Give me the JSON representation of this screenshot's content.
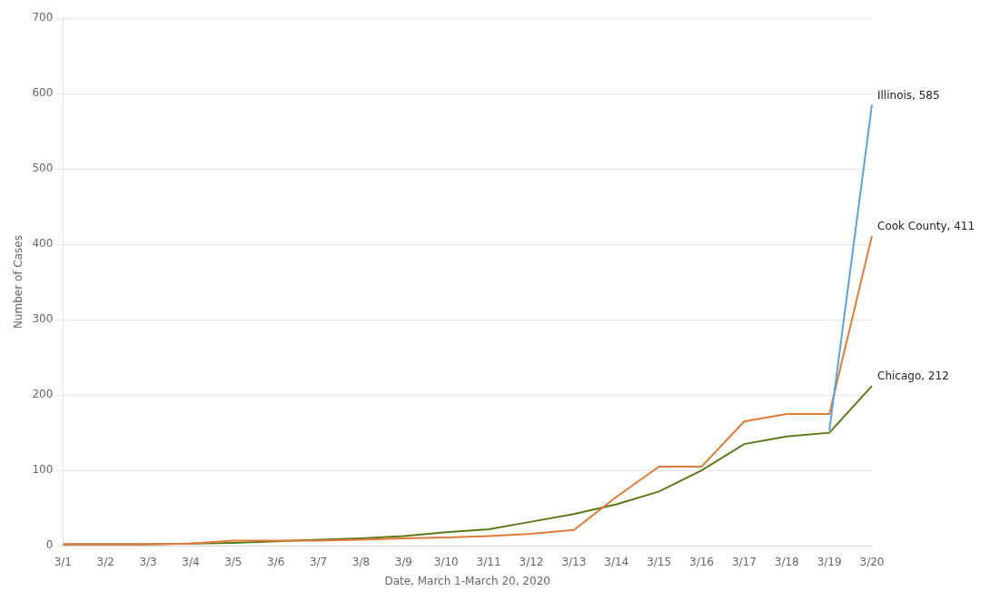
{
  "chart_data": {
    "type": "line",
    "categories": [
      "3/1",
      "3/2",
      "3/3",
      "3/4",
      "3/5",
      "3/6",
      "3/7",
      "3/8",
      "3/9",
      "3/10",
      "3/11",
      "3/12",
      "3/13",
      "3/14",
      "3/15",
      "3/16",
      "3/17",
      "3/18",
      "3/19",
      "3/20"
    ],
    "series": [
      {
        "color": "#5ba3d9",
        "values": [
          null,
          null,
          null,
          null,
          null,
          null,
          null,
          null,
          null,
          null,
          null,
          null,
          null,
          null,
          null,
          null,
          null,
          null,
          153,
          585
        ]
      },
      {
        "color": "#e07b39",
        "values": [
          2,
          2,
          2,
          3,
          7,
          7,
          7,
          8,
          10,
          11,
          13,
          16,
          21,
          65,
          105,
          105,
          165,
          175,
          175,
          411
        ]
      },
      {
        "color": "#5a7a1a",
        "values": [
          2,
          2,
          2,
          3,
          4,
          6,
          8,
          10,
          13,
          18,
          22,
          32,
          42,
          55,
          72,
          100,
          135,
          145,
          150,
          212
        ]
      }
    ],
    "annotations": [
      {
        "text": "Illinois, 585",
        "x": "3/20",
        "y": 585
      },
      {
        "text": "Cook County, 411",
        "x": "3/20",
        "y": 411
      },
      {
        "text": "Chicago, 212",
        "x": "3/20",
        "y": 212
      }
    ],
    "xlabel": "Date, March 1-March 20, 2020",
    "ylabel": "Number of Cases",
    "ylim": [
      0,
      700
    ],
    "yticks": [
      0,
      100,
      200,
      300,
      400,
      500,
      600,
      700
    ],
    "grid": "y"
  }
}
